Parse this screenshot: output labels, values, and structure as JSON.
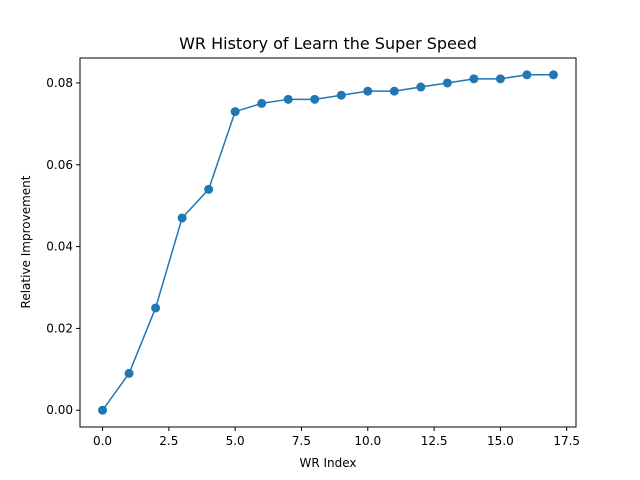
{
  "chart_data": {
    "type": "line",
    "title": "WR History of Learn the Super Speed",
    "xlabel": "WR Index",
    "ylabel": "Relative Improvement",
    "xlim": [
      -0.85,
      17.85
    ],
    "ylim": [
      -0.0041,
      0.0861
    ],
    "x_ticks": [
      0.0,
      2.5,
      5.0,
      7.5,
      10.0,
      12.5,
      15.0,
      17.5
    ],
    "x_tick_labels": [
      "0.0",
      "2.5",
      "5.0",
      "7.5",
      "10.0",
      "12.5",
      "15.0",
      "17.5"
    ],
    "y_ticks": [
      0.0,
      0.02,
      0.04,
      0.06,
      0.08
    ],
    "y_tick_labels": [
      "0.00",
      "0.02",
      "0.04",
      "0.06",
      "0.08"
    ],
    "grid": false,
    "series": [
      {
        "color": "#1f77b4",
        "marker": "circle",
        "x": [
          0,
          1,
          2,
          3,
          4,
          5,
          6,
          7,
          8,
          9,
          10,
          11,
          12,
          13,
          14,
          15,
          16,
          17
        ],
        "values": [
          0.0,
          0.009,
          0.025,
          0.047,
          0.054,
          0.073,
          0.075,
          0.076,
          0.076,
          0.077,
          0.078,
          0.078,
          0.079,
          0.08,
          0.081,
          0.081,
          0.082,
          0.082
        ]
      }
    ]
  }
}
